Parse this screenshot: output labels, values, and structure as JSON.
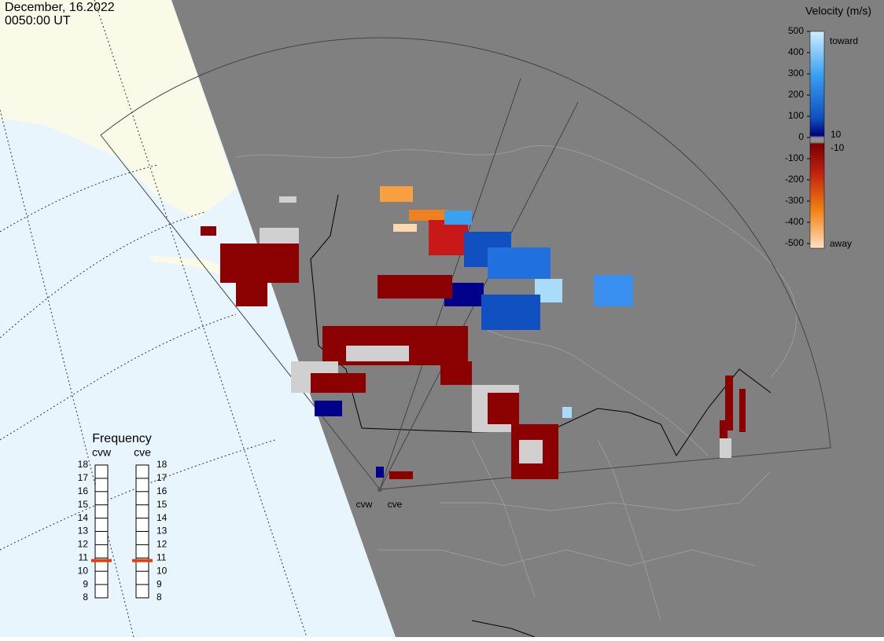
{
  "header": {
    "date": "December, 16.2022",
    "time": "0050:00 UT"
  },
  "legend": {
    "title": "Velocity (m/s)",
    "ticks": [
      500,
      400,
      300,
      200,
      100,
      0,
      -100,
      -200,
      -300,
      -400,
      -500
    ],
    "toward": "toward",
    "away": "away",
    "thresholds": [
      10,
      -10
    ]
  },
  "frequency": {
    "title": "Frequency",
    "ticks": [
      18,
      17,
      16,
      15,
      14,
      13,
      12,
      11,
      10,
      9,
      8
    ],
    "radars": [
      {
        "name": "cvw",
        "value": 10.8
      },
      {
        "name": "cve",
        "value": 10.8
      }
    ]
  },
  "stations": [
    "cvw",
    "cve"
  ]
}
